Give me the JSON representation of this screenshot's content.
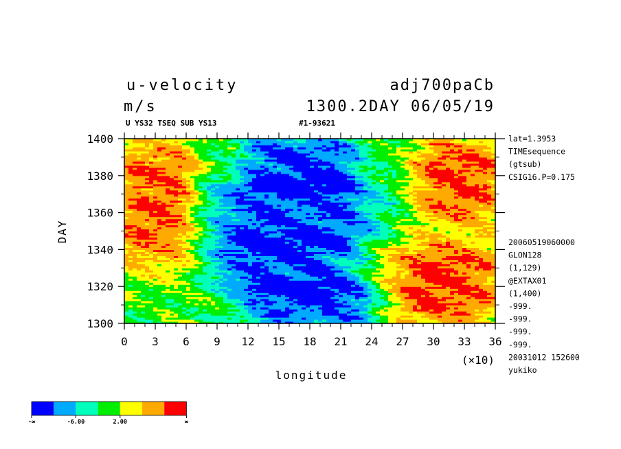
{
  "header": {
    "variable": "u-velocity",
    "units": "m/s",
    "run_name": "adj700paCb",
    "time_info": "1300.2DAY 06/05/19",
    "subtitle_left": "U YS32 TSEQ SUB YS13",
    "subtitle_right": "#1-93621"
  },
  "info_upper": [
    "lat=1.3953",
    "TIMEsequence",
    "(gtsub)",
    "CSIG16.P=0.175"
  ],
  "info_lower": [
    "20060519060000",
    "GLON128",
    "(1,129)",
    "@EXTAX01",
    "(1,400)",
    "-999.",
    "-999.",
    "-999.",
    "-999.",
    "20031012 152600",
    "yukiko"
  ],
  "chart_data": {
    "type": "heatmap",
    "xlabel": "longitude",
    "x_multiplier": "(×10)",
    "ylabel": "DAY",
    "xlim": [
      0,
      36
    ],
    "ylim": [
      1300,
      1400
    ],
    "x_ticks": [
      "0",
      "3",
      "6",
      "9",
      "12",
      "15",
      "18",
      "21",
      "24",
      "27",
      "30",
      "33",
      "36"
    ],
    "y_ticks": [
      "1300",
      "1320",
      "1340",
      "1360",
      "1380",
      "1400"
    ],
    "grid": false,
    "colorbar": {
      "colors": [
        "#0000ff",
        "#00aaff",
        "#00ffbb",
        "#00ee00",
        "#ffff00",
        "#ffaa00",
        "#ff0000"
      ],
      "labels": [
        "-∞",
        "-6.00",
        "2.00",
        "∞"
      ]
    },
    "regime_bands": [
      {
        "day_start": 1300,
        "day_end": 1320,
        "x_start": 12,
        "x_end": 24,
        "category": "negative"
      },
      {
        "day_start": 1320,
        "day_end": 1345,
        "x_start": 9,
        "x_end": 22,
        "category": "negative"
      },
      {
        "day_start": 1345,
        "day_end": 1375,
        "x_start": 9,
        "x_end": 24,
        "category": "negative"
      },
      {
        "day_start": 1375,
        "day_end": 1400,
        "x_start": 12,
        "x_end": 22,
        "category": "negative"
      },
      {
        "day_start": 1300,
        "day_end": 1345,
        "x_start": 26,
        "x_end": 36,
        "category": "positive"
      },
      {
        "day_start": 1355,
        "day_end": 1400,
        "x_start": 29,
        "x_end": 36,
        "category": "positive"
      },
      {
        "day_start": 1330,
        "day_end": 1400,
        "x_start": 0,
        "x_end": 6,
        "category": "positive"
      }
    ]
  }
}
